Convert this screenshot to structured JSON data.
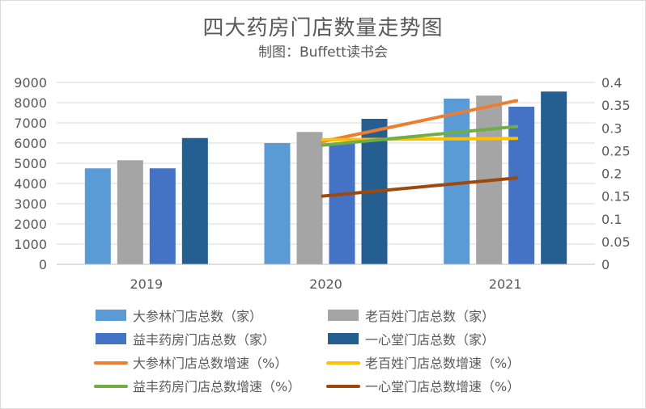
{
  "chart_data": {
    "type": "bar",
    "title": "四大药房门店数量走势图",
    "subtitle": "制图：Buffett读书会",
    "categories": [
      "2019",
      "2020",
      "2021"
    ],
    "y_left": {
      "min": 0,
      "max": 9000,
      "step": 1000,
      "ticks": [
        "0",
        "1000",
        "2000",
        "3000",
        "4000",
        "5000",
        "6000",
        "7000",
        "8000",
        "9000"
      ]
    },
    "y_right": {
      "min": 0,
      "max": 0.4,
      "step": 0.05,
      "ticks": [
        "0",
        "0.05",
        "0.1",
        "0.15",
        "0.2",
        "0.25",
        "0.3",
        "0.35",
        "0.4"
      ]
    },
    "bar_series": [
      {
        "name": "大参林门店总数（家）",
        "color": "#5b9bd5",
        "values": [
          4750,
          6000,
          8200
        ]
      },
      {
        "name": "老百姓门店总数（家）",
        "color": "#a5a5a5",
        "values": [
          5150,
          6550,
          8350
        ]
      },
      {
        "name": "益丰药房门店总数（家）",
        "color": "#4472c4",
        "values": [
          4750,
          6000,
          7800
        ]
      },
      {
        "name": "一心堂门店总数（家）",
        "color": "#255e91",
        "values": [
          6250,
          7200,
          8550
        ]
      }
    ],
    "line_series": [
      {
        "name": "大参林门店总数增速（%）",
        "color": "#ed7d31",
        "values": [
          null,
          0.27,
          0.36
        ]
      },
      {
        "name": "老百姓门店总数增速（%）",
        "color": "#ffc000",
        "values": [
          null,
          0.274,
          0.277
        ]
      },
      {
        "name": "益丰药房门店总数增速（%）",
        "color": "#70ad47",
        "values": [
          null,
          0.262,
          0.303
        ]
      },
      {
        "name": "一心堂门店总数增速（%）",
        "color": "#9e480e",
        "values": [
          null,
          0.15,
          0.19
        ]
      }
    ],
    "legend_position": "bottom",
    "grid": true
  }
}
